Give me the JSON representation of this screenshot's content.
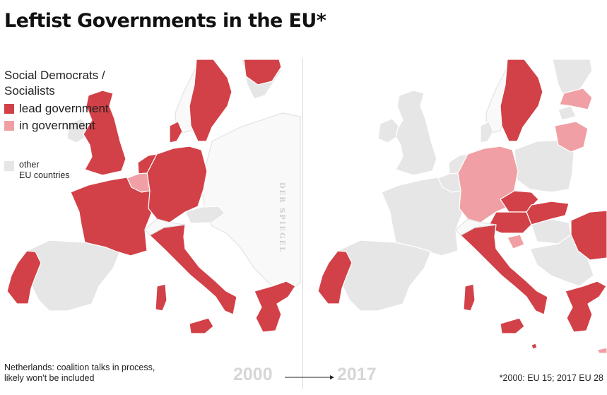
{
  "title": "Leftist Governments in the EU*",
  "legend": {
    "heading_line1": "Social Democrats /",
    "heading_line2": "Socialists",
    "lead_label": "lead government",
    "in_label": "in government",
    "other_line1": "other",
    "other_line2": "EU countries"
  },
  "colors": {
    "lead": "#d24148",
    "in": "#f0a0a4",
    "other": "#e6e6e6",
    "nonmember": "#f9f9f9",
    "border": "#ffffff"
  },
  "watermark": "DER SPIEGEL",
  "note_line1": "Netherlands: coalition talks in process,",
  "note_line2": "likely won't be included",
  "year_left": "2000",
  "year_right": "2017",
  "footnote": "*2000: EU 15; 2017 EU 28"
}
